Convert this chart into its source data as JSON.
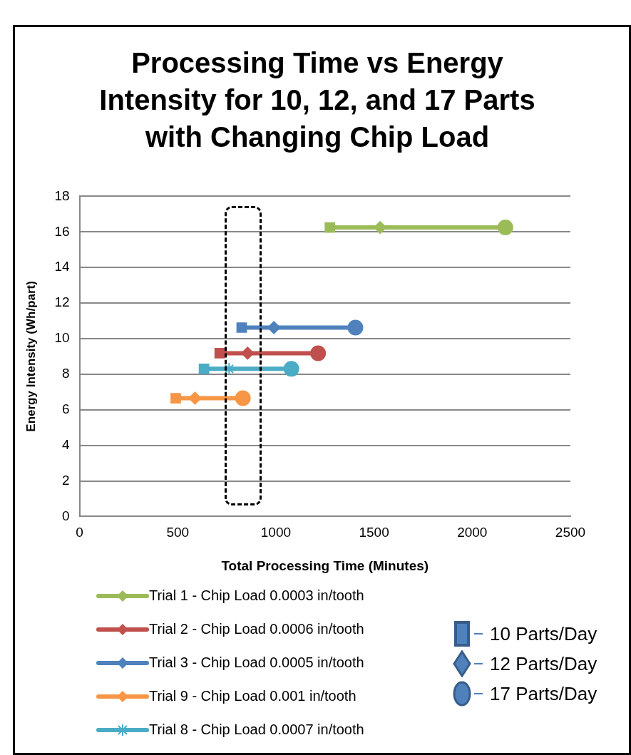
{
  "chart_data": {
    "type": "line",
    "title": "Processing Time vs Energy Intensity for 10, 12, and 17 Parts with Changing Chip Load",
    "xlabel": "Total Processing Time (Minutes)",
    "ylabel": "Energy Intensity (Wh/part)",
    "xlim": [
      0,
      2500
    ],
    "xticks": [
      0,
      500,
      1000,
      1500,
      2000,
      2500
    ],
    "ylim": [
      0,
      18
    ],
    "yticks": [
      0,
      2,
      4,
      6,
      8,
      10,
      12,
      14,
      16,
      18
    ],
    "grid": "y",
    "legend": "bottom",
    "annotations": [
      "10 Parts/Day",
      "12 Parts/Day",
      "17 Parts/Day"
    ],
    "series": [
      {
        "name": "Trial 1 - Chip Load 0.0003 in/tooth",
        "color": "#9bbb59",
        "x": [
          1275,
          1531,
          2169
        ],
        "values": [
          16.25,
          16.25,
          16.25
        ],
        "marker": [
          "square",
          "diamond",
          "circle"
        ]
      },
      {
        "name": "Trial 2 - Chip Load 0.0006 in/tooth",
        "color": "#c0504d",
        "x": [
          714,
          856,
          1215
        ],
        "values": [
          9.18,
          9.18,
          9.18
        ],
        "marker": [
          "square",
          "diamond",
          "circle"
        ]
      },
      {
        "name": "Trial 3 - Chip Load 0.0005 in/tooth",
        "color": "#4f81bd",
        "x": [
          826,
          990,
          1405
        ],
        "values": [
          10.62,
          10.62,
          10.62
        ],
        "marker": [
          "square",
          "diamond",
          "circle"
        ]
      },
      {
        "name": "Trial 9 - Chip Load 0.001 in/tooth",
        "color": "#f79646",
        "x": [
          490,
          588,
          832
        ],
        "values": [
          6.65,
          6.65,
          6.65
        ],
        "marker": [
          "square",
          "diamond",
          "circle"
        ]
      },
      {
        "name": "Trial 8 - Chip Load 0.0007 in/tooth",
        "color": "#4bacc6",
        "x": [
          634,
          762,
          1079
        ],
        "values": [
          8.3,
          8.3,
          8.3
        ],
        "marker": [
          "square",
          "star",
          "circle"
        ]
      }
    ]
  }
}
